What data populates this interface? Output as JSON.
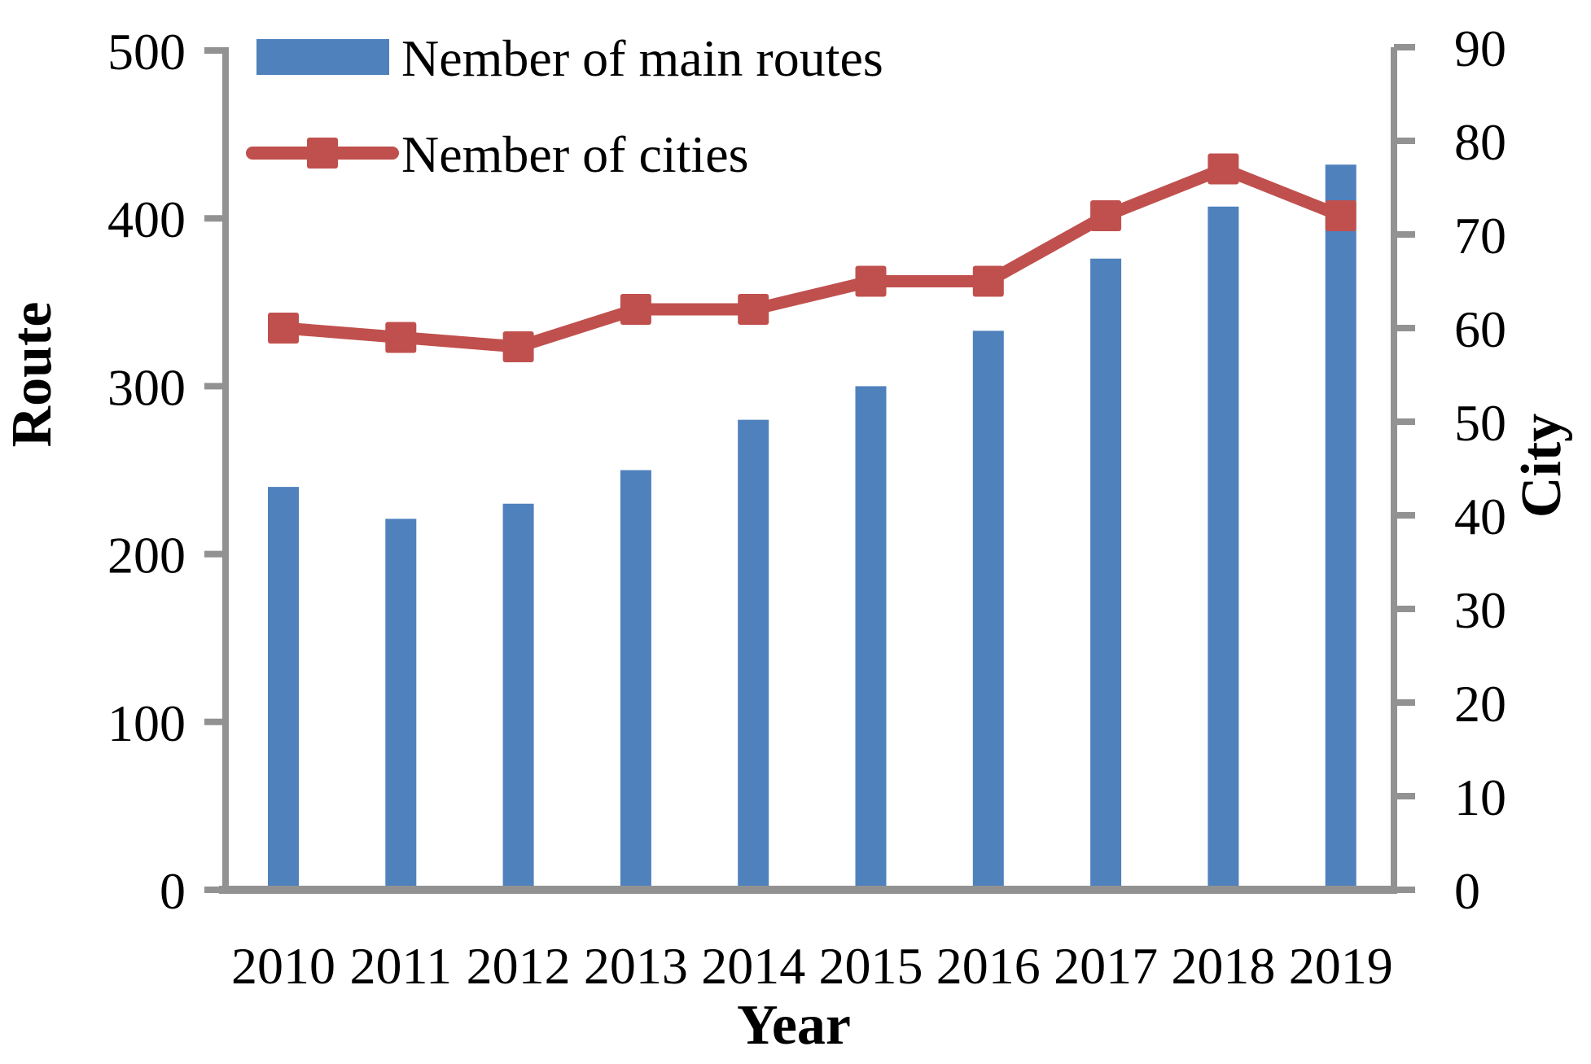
{
  "chart_data": {
    "type": "bar-line-combo",
    "title": "",
    "categories": [
      "2010",
      "2011",
      "2012",
      "2013",
      "2014",
      "2015",
      "2016",
      "2017",
      "2018",
      "2019"
    ],
    "series": [
      {
        "name": "Nember of main routes",
        "type": "bar",
        "axis": "left",
        "color": "#4F81BD",
        "values": [
          240,
          221,
          230,
          250,
          280,
          300,
          333,
          376,
          407,
          432
        ]
      },
      {
        "name": "Nember of cities",
        "type": "line",
        "axis": "right",
        "color": "#C0504D",
        "marker": "square",
        "values": [
          60,
          59,
          58,
          62,
          62,
          65,
          65,
          72,
          77,
          72
        ]
      }
    ],
    "left_axis": {
      "label": "Route",
      "min": 0,
      "max": 500,
      "step": 100,
      "ticks": [
        0,
        100,
        200,
        300,
        400,
        500
      ]
    },
    "right_axis": {
      "label": "City",
      "min": 0,
      "max": 90,
      "step": 10,
      "ticks": [
        0,
        10,
        20,
        30,
        40,
        50,
        60,
        70,
        80,
        90
      ]
    },
    "x_axis": {
      "label": "Year"
    },
    "legend": {
      "position": "top-left",
      "entries": [
        "Nember of main routes",
        "Nember of cities"
      ]
    },
    "grid": false,
    "colors": {
      "bar": "#4F81BD",
      "line": "#C0504D",
      "axis": "#929292",
      "text": "#000000"
    }
  }
}
